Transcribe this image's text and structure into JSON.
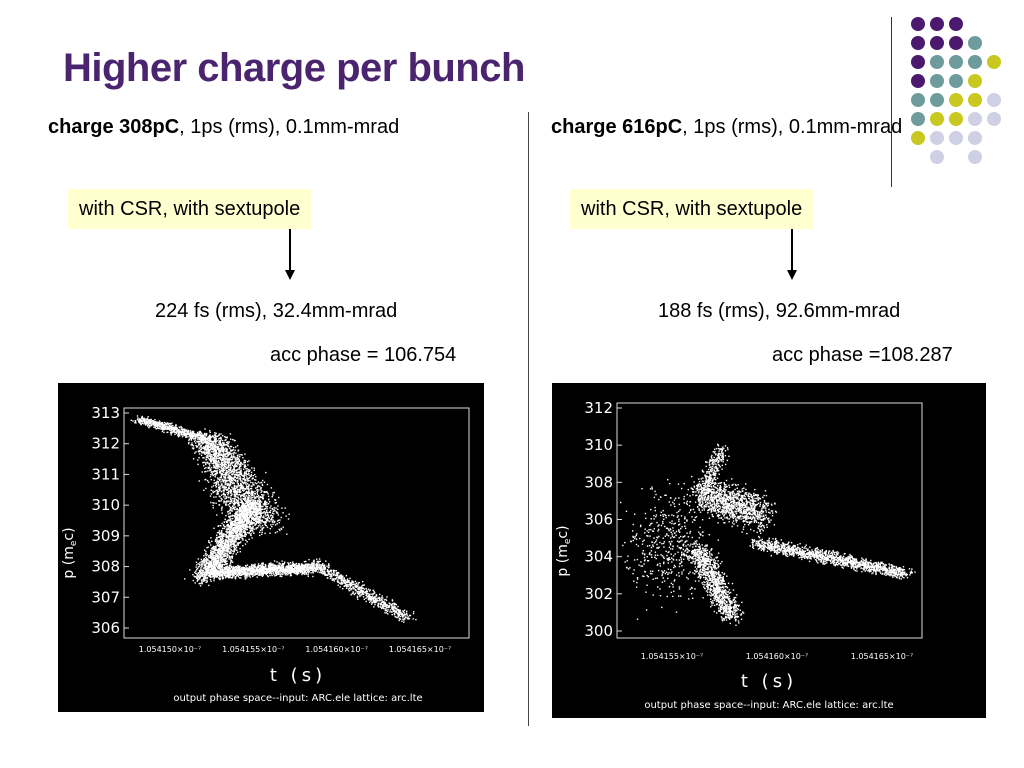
{
  "slide": {
    "title": "Higher charge per bunch",
    "dot_colors": [
      "#4b1a6e",
      "#6e9c9c",
      "#c8c820",
      "#d0d0e4"
    ]
  },
  "left": {
    "heading_bold": "charge 308pC",
    "heading_rest": ", 1ps (rms), 0.1mm-mrad",
    "callout": "with CSR, with sextupole",
    "result": "224 fs (rms), 32.4mm-mrad",
    "acc_phase": "acc phase = 106.754",
    "plot": {
      "ylabel": "p (m",
      "ylabel_sub": "e",
      "ylabel_end": "c)",
      "xlabel": "t (s)",
      "caption": "output phase space--input: ARC.ele   lattice: arc.lte",
      "yticks": [
        "313",
        "312",
        "311",
        "310",
        "309",
        "308",
        "307",
        "306"
      ],
      "xticks": [
        "1.054150×10⁻⁷",
        "1.054155×10⁻⁷",
        "1.054160×10⁻⁷",
        "1.054165×10⁻⁷"
      ]
    }
  },
  "right": {
    "heading_bold": "charge 616pC",
    "heading_rest": ", 1ps (rms), 0.1mm-mrad",
    "callout": "with CSR, with sextupole",
    "result": "188 fs (rms), 92.6mm-mrad",
    "acc_phase": "acc phase =108.287",
    "plot": {
      "ylabel": "p (m",
      "ylabel_sub": "e",
      "ylabel_end": "c)",
      "xlabel": "t (s)",
      "caption": "output phase space--input: ARC.ele   lattice: arc.lte",
      "yticks": [
        "312",
        "310",
        "308",
        "306",
        "304",
        "302",
        "300"
      ],
      "xticks": [
        "1.054155×10⁻⁷",
        "1.054160×10⁻⁷",
        "1.054165×10⁻⁷"
      ]
    }
  }
}
